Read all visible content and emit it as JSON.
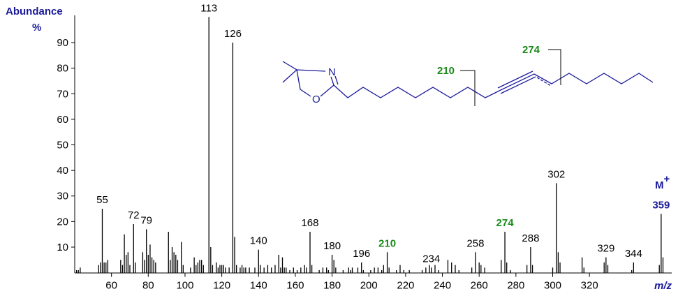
{
  "chart_data": {
    "type": "bar",
    "y_label": "Abundance",
    "y_unit": "%",
    "x_label": "m/z",
    "molecular_ion": {
      "symbol": "M",
      "charge": "+",
      "color": "#1a1a9a"
    },
    "color": "#000000",
    "xlim": [
      40,
      364
    ],
    "ylim": [
      0,
      100
    ],
    "xticks": [
      60,
      80,
      100,
      120,
      140,
      160,
      180,
      200,
      220,
      240,
      260,
      280,
      300,
      320
    ],
    "yticks": [
      10,
      20,
      30,
      40,
      50,
      60,
      70,
      80,
      90
    ],
    "x": [
      41,
      42,
      43,
      53,
      54,
      55,
      56,
      57,
      58,
      65,
      66,
      67,
      68,
      69,
      70,
      72,
      73,
      77,
      78,
      79,
      80,
      81,
      82,
      83,
      84,
      91,
      92,
      93,
      94,
      95,
      96,
      98,
      99,
      103,
      105,
      106,
      107,
      108,
      109,
      110,
      113,
      114,
      115,
      117,
      118,
      119,
      120,
      121,
      122,
      124,
      126,
      127,
      128,
      130,
      131,
      132,
      133,
      135,
      138,
      140,
      141,
      143,
      145,
      147,
      149,
      151,
      152,
      153,
      154,
      155,
      157,
      159,
      161,
      163,
      165,
      166,
      168,
      169,
      173,
      175,
      177,
      178,
      180,
      181,
      182,
      186,
      189,
      190,
      191,
      194,
      196,
      197,
      201,
      203,
      205,
      207,
      208,
      210,
      211,
      215,
      217,
      219,
      222,
      229,
      231,
      233,
      234,
      236,
      238,
      243,
      245,
      247,
      249,
      256,
      258,
      260,
      261,
      263,
      272,
      274,
      275,
      277,
      286,
      288,
      289,
      300,
      302,
      303,
      304,
      316,
      317,
      328,
      329,
      330,
      343,
      344,
      358,
      359,
      360
    ],
    "values": [
      1,
      1,
      2,
      3,
      4,
      25,
      4,
      4,
      5,
      5,
      3,
      15,
      7,
      8,
      3,
      19,
      4,
      8,
      5,
      17,
      7,
      11,
      6,
      5,
      4,
      16,
      5,
      10,
      8,
      7,
      5,
      12,
      3,
      2,
      6,
      3,
      4,
      5,
      5,
      3,
      100,
      10,
      3,
      4,
      2,
      3,
      3,
      3,
      2,
      2,
      90,
      14,
      3,
      2,
      3,
      2,
      2,
      2,
      2,
      9,
      3,
      2,
      3,
      2,
      3,
      7,
      2,
      6,
      2,
      2,
      1,
      2,
      1,
      2,
      3,
      2,
      16,
      3,
      1,
      2,
      2,
      1,
      7,
      5,
      2,
      1,
      2,
      1,
      2,
      2,
      4,
      1,
      1,
      2,
      2,
      1,
      3,
      8,
      2,
      1,
      3,
      1,
      1,
      1,
      2,
      3,
      2,
      3,
      1,
      5,
      4,
      3,
      1,
      2,
      8,
      4,
      3,
      2,
      5,
      16,
      4,
      1,
      3,
      10,
      3,
      2,
      35,
      8,
      4,
      6,
      2,
      4,
      6,
      3,
      1,
      4,
      3,
      23,
      6
    ],
    "labeled_peaks": [
      {
        "mz": 55,
        "color": "#000000"
      },
      {
        "mz": 72,
        "color": "#000000"
      },
      {
        "mz": 79,
        "color": "#000000"
      },
      {
        "mz": 113,
        "color": "#000000"
      },
      {
        "mz": 126,
        "color": "#000000"
      },
      {
        "mz": 140,
        "color": "#000000"
      },
      {
        "mz": 168,
        "color": "#000000"
      },
      {
        "mz": 180,
        "color": "#000000"
      },
      {
        "mz": 196,
        "color": "#000000"
      },
      {
        "mz": 210,
        "color": "#1a8a1a"
      },
      {
        "mz": 234,
        "color": "#000000"
      },
      {
        "mz": 258,
        "color": "#000000"
      },
      {
        "mz": 274,
        "color": "#1a8a1a"
      },
      {
        "mz": 288,
        "color": "#000000"
      },
      {
        "mz": 302,
        "color": "#000000"
      },
      {
        "mz": 329,
        "color": "#000000"
      },
      {
        "mz": 344,
        "color": "#000000"
      },
      {
        "mz": 359,
        "color": "#1a1a9a"
      }
    ],
    "structure": {
      "atoms": [
        "N",
        "O"
      ],
      "fragment_labels": [
        210,
        274
      ]
    }
  }
}
